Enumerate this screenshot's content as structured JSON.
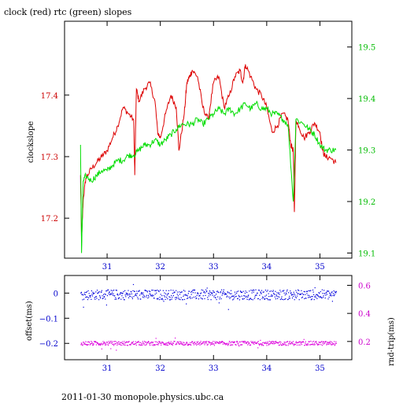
{
  "header": {
    "title": "clock (red) rtc (green) slopes",
    "footer": "2011-01-30  monopole.physics.ubc.ca"
  },
  "colors": {
    "clock": "#dd0000",
    "rtc": "#00dd00",
    "offset": "#0000dd",
    "rndtrip": "#dd00dd",
    "axis": "#000000"
  },
  "chart_data": [
    {
      "type": "line",
      "ylabel": "clockslope",
      "xlim": [
        30.2,
        35.6
      ],
      "x_ticks": [
        31,
        32,
        33,
        34,
        35
      ],
      "ylim": [
        17.135,
        17.52
      ],
      "y_ticks": [
        17.2,
        17.3,
        17.4
      ],
      "y2label": "",
      "y2lim": [
        19.09,
        19.55
      ],
      "y2_ticks": [
        19.1,
        19.2,
        19.3,
        19.4,
        19.5
      ],
      "series": [
        {
          "axis": "left",
          "color": "clock",
          "points": [
            [
              30.5,
              17.27
            ],
            [
              30.52,
              17.16
            ],
            [
              30.55,
              17.23
            ],
            [
              30.6,
              17.265
            ],
            [
              30.7,
              17.28
            ],
            [
              30.8,
              17.29
            ],
            [
              30.9,
              17.3
            ],
            [
              31.0,
              17.31
            ],
            [
              31.1,
              17.33
            ],
            [
              31.2,
              17.35
            ],
            [
              31.3,
              17.38
            ],
            [
              31.4,
              17.37
            ],
            [
              31.5,
              17.36
            ],
            [
              31.52,
              17.27
            ],
            [
              31.55,
              17.41
            ],
            [
              31.6,
              17.39
            ],
            [
              31.7,
              17.41
            ],
            [
              31.8,
              17.42
            ],
            [
              31.9,
              17.39
            ],
            [
              31.95,
              17.34
            ],
            [
              32.0,
              17.33
            ],
            [
              32.1,
              17.37
            ],
            [
              32.2,
              17.4
            ],
            [
              32.3,
              17.38
            ],
            [
              32.35,
              17.31
            ],
            [
              32.45,
              17.37
            ],
            [
              32.5,
              17.42
            ],
            [
              32.55,
              17.43
            ],
            [
              32.6,
              17.44
            ],
            [
              32.7,
              17.43
            ],
            [
              32.8,
              17.38
            ],
            [
              32.9,
              17.36
            ],
            [
              33.0,
              17.42
            ],
            [
              33.1,
              17.43
            ],
            [
              33.2,
              17.38
            ],
            [
              33.3,
              17.4
            ],
            [
              33.4,
              17.43
            ],
            [
              33.5,
              17.44
            ],
            [
              33.55,
              17.42
            ],
            [
              33.6,
              17.45
            ],
            [
              33.7,
              17.43
            ],
            [
              33.8,
              17.41
            ],
            [
              33.9,
              17.4
            ],
            [
              34.0,
              17.38
            ],
            [
              34.1,
              17.34
            ],
            [
              34.2,
              17.35
            ],
            [
              34.3,
              17.37
            ],
            [
              34.4,
              17.36
            ],
            [
              34.45,
              17.32
            ],
            [
              34.5,
              17.31
            ],
            [
              34.52,
              17.21
            ],
            [
              34.55,
              17.36
            ],
            [
              34.6,
              17.35
            ],
            [
              34.7,
              17.33
            ],
            [
              34.8,
              17.34
            ],
            [
              34.9,
              17.355
            ],
            [
              35.0,
              17.34
            ],
            [
              35.05,
              17.31
            ],
            [
              35.1,
              17.3
            ],
            [
              35.2,
              17.298
            ],
            [
              35.3,
              17.29
            ]
          ]
        },
        {
          "axis": "right",
          "color": "rtc",
          "points": [
            [
              30.5,
              19.31
            ],
            [
              30.52,
              19.1
            ],
            [
              30.55,
              19.24
            ],
            [
              30.6,
              19.25
            ],
            [
              30.7,
              19.24
            ],
            [
              30.8,
              19.25
            ],
            [
              30.9,
              19.26
            ],
            [
              31.0,
              19.26
            ],
            [
              31.1,
              19.27
            ],
            [
              31.2,
              19.28
            ],
            [
              31.3,
              19.28
            ],
            [
              31.4,
              19.29
            ],
            [
              31.5,
              19.29
            ],
            [
              31.6,
              19.3
            ],
            [
              31.7,
              19.31
            ],
            [
              31.8,
              19.31
            ],
            [
              31.9,
              19.32
            ],
            [
              32.0,
              19.31
            ],
            [
              32.1,
              19.32
            ],
            [
              32.2,
              19.33
            ],
            [
              32.3,
              19.34
            ],
            [
              32.4,
              19.35
            ],
            [
              32.5,
              19.35
            ],
            [
              32.6,
              19.35
            ],
            [
              32.7,
              19.36
            ],
            [
              32.8,
              19.35
            ],
            [
              32.9,
              19.36
            ],
            [
              33.0,
              19.37
            ],
            [
              33.1,
              19.38
            ],
            [
              33.2,
              19.37
            ],
            [
              33.3,
              19.38
            ],
            [
              33.4,
              19.37
            ],
            [
              33.5,
              19.38
            ],
            [
              33.6,
              19.39
            ],
            [
              33.7,
              19.38
            ],
            [
              33.8,
              19.39
            ],
            [
              33.9,
              19.38
            ],
            [
              34.0,
              19.38
            ],
            [
              34.1,
              19.37
            ],
            [
              34.2,
              19.37
            ],
            [
              34.3,
              19.36
            ],
            [
              34.4,
              19.35
            ],
            [
              34.5,
              19.2
            ],
            [
              34.55,
              19.36
            ],
            [
              34.7,
              19.35
            ],
            [
              34.8,
              19.34
            ],
            [
              34.9,
              19.33
            ],
            [
              35.0,
              19.31
            ],
            [
              35.1,
              19.3
            ],
            [
              35.2,
              19.3
            ],
            [
              35.3,
              19.3
            ]
          ]
        }
      ]
    },
    {
      "type": "scatter",
      "ylabel": "offset(ms)",
      "y2label": "rnd-trip(ms)",
      "xlim": [
        30.2,
        35.6
      ],
      "x_ticks": [
        31,
        32,
        33,
        34,
        35
      ],
      "ylim": [
        -0.265,
        0.07
      ],
      "y_ticks": [
        0,
        -0.1,
        -0.2
      ],
      "y2lim": [
        0.07,
        0.67
      ],
      "y2_ticks": [
        0.6,
        0.4,
        0.2
      ],
      "series": [
        {
          "axis": "left",
          "color": "offset",
          "x_range": [
            30.5,
            35.3
          ],
          "level": -0.005,
          "spread": 0.02
        },
        {
          "axis": "right",
          "color": "rndtrip",
          "x_range": [
            30.5,
            35.3
          ],
          "level": 0.19,
          "spread": 0.015
        }
      ]
    }
  ]
}
